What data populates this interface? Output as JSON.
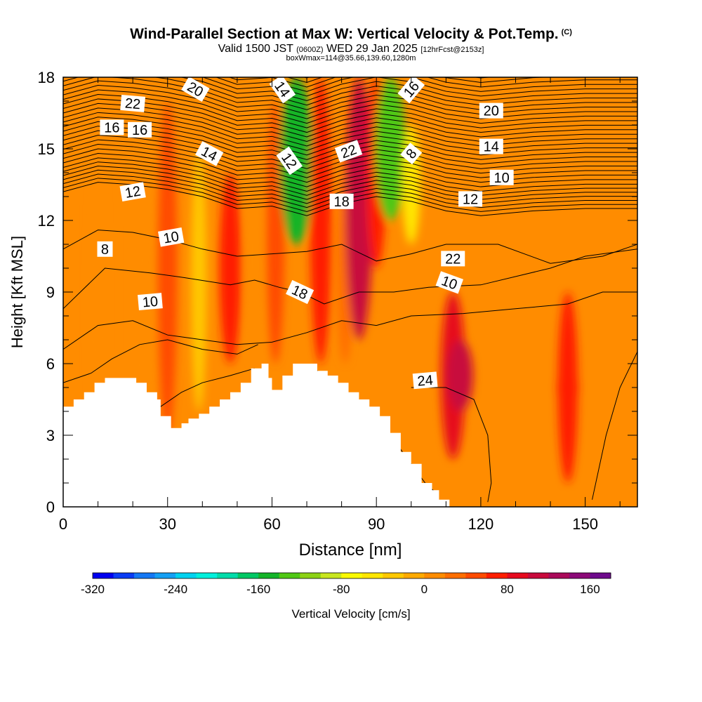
{
  "header": {
    "title": "Wind-Parallel Section at Max W: Vertical Velocity & Pot.Temp.",
    "copyright": "(C)",
    "valid_prefix": "Valid 1500 JST",
    "valid_utc": "(0600Z)",
    "valid_date": "WED 29 Jan 2025",
    "forecast": "[12hrFcst@2153z]",
    "box_info": "boxWmax=114@35.66,139.60,1280m"
  },
  "chart_data": {
    "type": "heatmap",
    "xlabel": "Distance [nm]",
    "ylabel": "Height [Kft MSL]",
    "xlim": [
      0,
      165
    ],
    "ylim": [
      0,
      18
    ],
    "x_ticks": [
      0,
      30,
      60,
      90,
      120,
      150
    ],
    "y_ticks": [
      0,
      3,
      6,
      9,
      12,
      15,
      18
    ],
    "colorbar": {
      "label": "Vertical Velocity [cm/s]",
      "min": -320,
      "max": 180,
      "step": 20,
      "ticks": [
        -320,
        -240,
        -160,
        -80,
        0,
        80,
        160
      ],
      "colors": [
        "#0000f0",
        "#0a3cf5",
        "#1478f5",
        "#14a0f5",
        "#00d2f0",
        "#00f0dc",
        "#00dcaa",
        "#00c864",
        "#14b428",
        "#50c814",
        "#8cd214",
        "#c8e61e",
        "#fafa00",
        "#ffe600",
        "#ffc800",
        "#ffaa00",
        "#ff8c00",
        "#ff6e00",
        "#ff4b00",
        "#ff1e00",
        "#e60a1e",
        "#c80a3c",
        "#aa0a5a",
        "#8c0a78",
        "#6e0a8c"
      ]
    },
    "velocity_cells": [
      {
        "x": 0,
        "y0": 0,
        "y1": 18,
        "w": 12
      },
      {
        "x": 10,
        "y0": 2,
        "y1": 15,
        "w": 14
      },
      {
        "x": 22,
        "y0": 2,
        "y1": 16,
        "w": 0
      },
      {
        "x": 30,
        "y0": 3,
        "y1": 17,
        "w": 55
      },
      {
        "x": 39,
        "y0": 4,
        "y1": 15,
        "w": -30
      },
      {
        "x": 48,
        "y0": 6,
        "y1": 14,
        "w": 72
      },
      {
        "x": 55,
        "y0": 6,
        "y1": 15,
        "w": 18
      },
      {
        "x": 61,
        "y0": 6,
        "y1": 17,
        "w": 48
      },
      {
        "x": 67,
        "y0": 11,
        "y1": 18,
        "w": -160
      },
      {
        "x": 74,
        "y0": 6,
        "y1": 18,
        "w": 70
      },
      {
        "x": 81,
        "y0": 6,
        "y1": 14,
        "w": 38
      },
      {
        "x": 85,
        "y0": 7,
        "y1": 18,
        "w": 115
      },
      {
        "x": 90,
        "y0": 10,
        "y1": 18,
        "w": 60
      },
      {
        "x": 94,
        "y0": 12,
        "y1": 18,
        "w": -140
      },
      {
        "x": 100,
        "y0": 11,
        "y1": 16,
        "w": -50
      },
      {
        "x": 112,
        "y0": 2,
        "y1": 9,
        "w": 92
      },
      {
        "x": 114,
        "y0": 4,
        "y1": 7,
        "w": 105
      },
      {
        "x": 145,
        "y0": 1,
        "y1": 9,
        "w": 60
      },
      {
        "x": 145,
        "y0": 4,
        "y1": 6,
        "w": 72
      }
    ],
    "theta_contours": [
      {
        "level": 8,
        "labels": [
          "8",
          "8"
        ]
      },
      {
        "level": 10,
        "labels": [
          "10",
          "10",
          "10"
        ]
      },
      {
        "level": 12,
        "labels": [
          "12",
          "12",
          "12"
        ]
      },
      {
        "level": 14,
        "labels": [
          "14",
          "14",
          "14"
        ]
      },
      {
        "level": 16,
        "labels": [
          "16",
          "16",
          "16"
        ]
      },
      {
        "level": 18,
        "labels": [
          "18",
          "18"
        ]
      },
      {
        "level": 20,
        "labels": [
          "20",
          "20"
        ]
      },
      {
        "level": 22,
        "labels": [
          "22",
          "22"
        ]
      },
      {
        "level": 24,
        "labels": [
          "24"
        ]
      }
    ],
    "terrain": [
      [
        0,
        4.2
      ],
      [
        3,
        4.5
      ],
      [
        6,
        4.8
      ],
      [
        9,
        5.2
      ],
      [
        12,
        5.4
      ],
      [
        15,
        5.4
      ],
      [
        18,
        5.4
      ],
      [
        21,
        5.2
      ],
      [
        24,
        4.8
      ],
      [
        27,
        4.5
      ],
      [
        28,
        3.8
      ],
      [
        30,
        3.8
      ],
      [
        31,
        3.3
      ],
      [
        33,
        3.3
      ],
      [
        34,
        3.5
      ],
      [
        36,
        3.7
      ],
      [
        39,
        3.9
      ],
      [
        42,
        4.2
      ],
      [
        45,
        4.5
      ],
      [
        48,
        4.8
      ],
      [
        51,
        5.2
      ],
      [
        54,
        5.8
      ],
      [
        57,
        6.0
      ],
      [
        59,
        5.4
      ],
      [
        60,
        4.9
      ],
      [
        63,
        5.5
      ],
      [
        66,
        6.0
      ],
      [
        70,
        6.0
      ],
      [
        73,
        5.7
      ],
      [
        76,
        5.5
      ],
      [
        79,
        5.2
      ],
      [
        82,
        4.8
      ],
      [
        85,
        4.5
      ],
      [
        88,
        4.2
      ],
      [
        91,
        3.8
      ],
      [
        94,
        3.1
      ],
      [
        97,
        2.3
      ],
      [
        100,
        1.8
      ],
      [
        103,
        1.0
      ],
      [
        106,
        0.7
      ],
      [
        108,
        0.3
      ],
      [
        111,
        0.3
      ]
    ]
  }
}
